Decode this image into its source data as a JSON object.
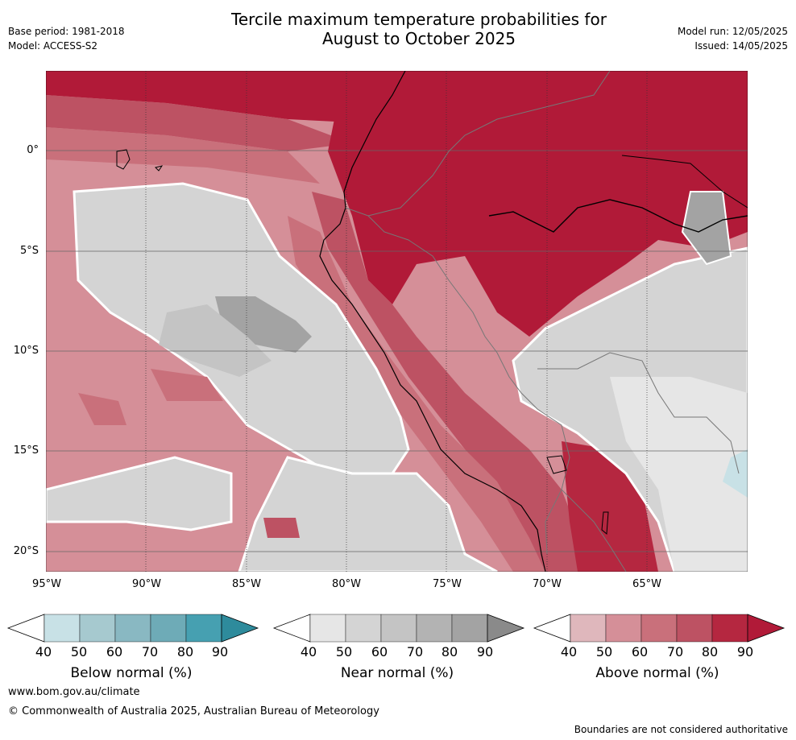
{
  "header": {
    "title_line1": "Tercile maximum temperature probabilities for",
    "title_line2": "August to October 2025",
    "base_period": "Base period: 1981-2018",
    "model": "Model: ACCESS-S2",
    "model_run": "Model run: 12/05/2025",
    "issued": "Issued: 14/05/2025"
  },
  "map": {
    "lat_labels": [
      "0°",
      "5°S",
      "10°S",
      "15°S",
      "20°S"
    ],
    "lon_labels": [
      "95°W",
      "90°W",
      "85°W",
      "80°W",
      "75°W",
      "70°W",
      "65°W"
    ]
  },
  "colorbars": [
    {
      "title": "Below normal (%)",
      "ticks": [
        "40",
        "50",
        "60",
        "70",
        "80",
        "90"
      ],
      "colors": [
        "#ffffff",
        "#c8e1e6",
        "#a6c9cf",
        "#89b8c2",
        "#6eabb7",
        "#46a0b1",
        "#2e8b9c"
      ]
    },
    {
      "title": "Near normal (%)",
      "ticks": [
        "40",
        "50",
        "60",
        "70",
        "80",
        "90"
      ],
      "colors": [
        "#ffffff",
        "#e6e6e6",
        "#d4d4d4",
        "#c4c4c4",
        "#b3b3b3",
        "#a3a3a3",
        "#8a8a8a"
      ]
    },
    {
      "title": "Above normal (%)",
      "ticks": [
        "40",
        "50",
        "60",
        "70",
        "80",
        "90"
      ],
      "colors": [
        "#ffffff",
        "#dfb7bc",
        "#d58f98",
        "#c9707b",
        "#bd5263",
        "#b52740",
        "#b11a38"
      ]
    }
  ],
  "footer": {
    "website": "www.bom.gov.au/climate",
    "copyright": "© Commonwealth of Australia 2025, Australian Bureau of Meteorology",
    "disclaimer": "Boundaries are not considered authoritative"
  }
}
